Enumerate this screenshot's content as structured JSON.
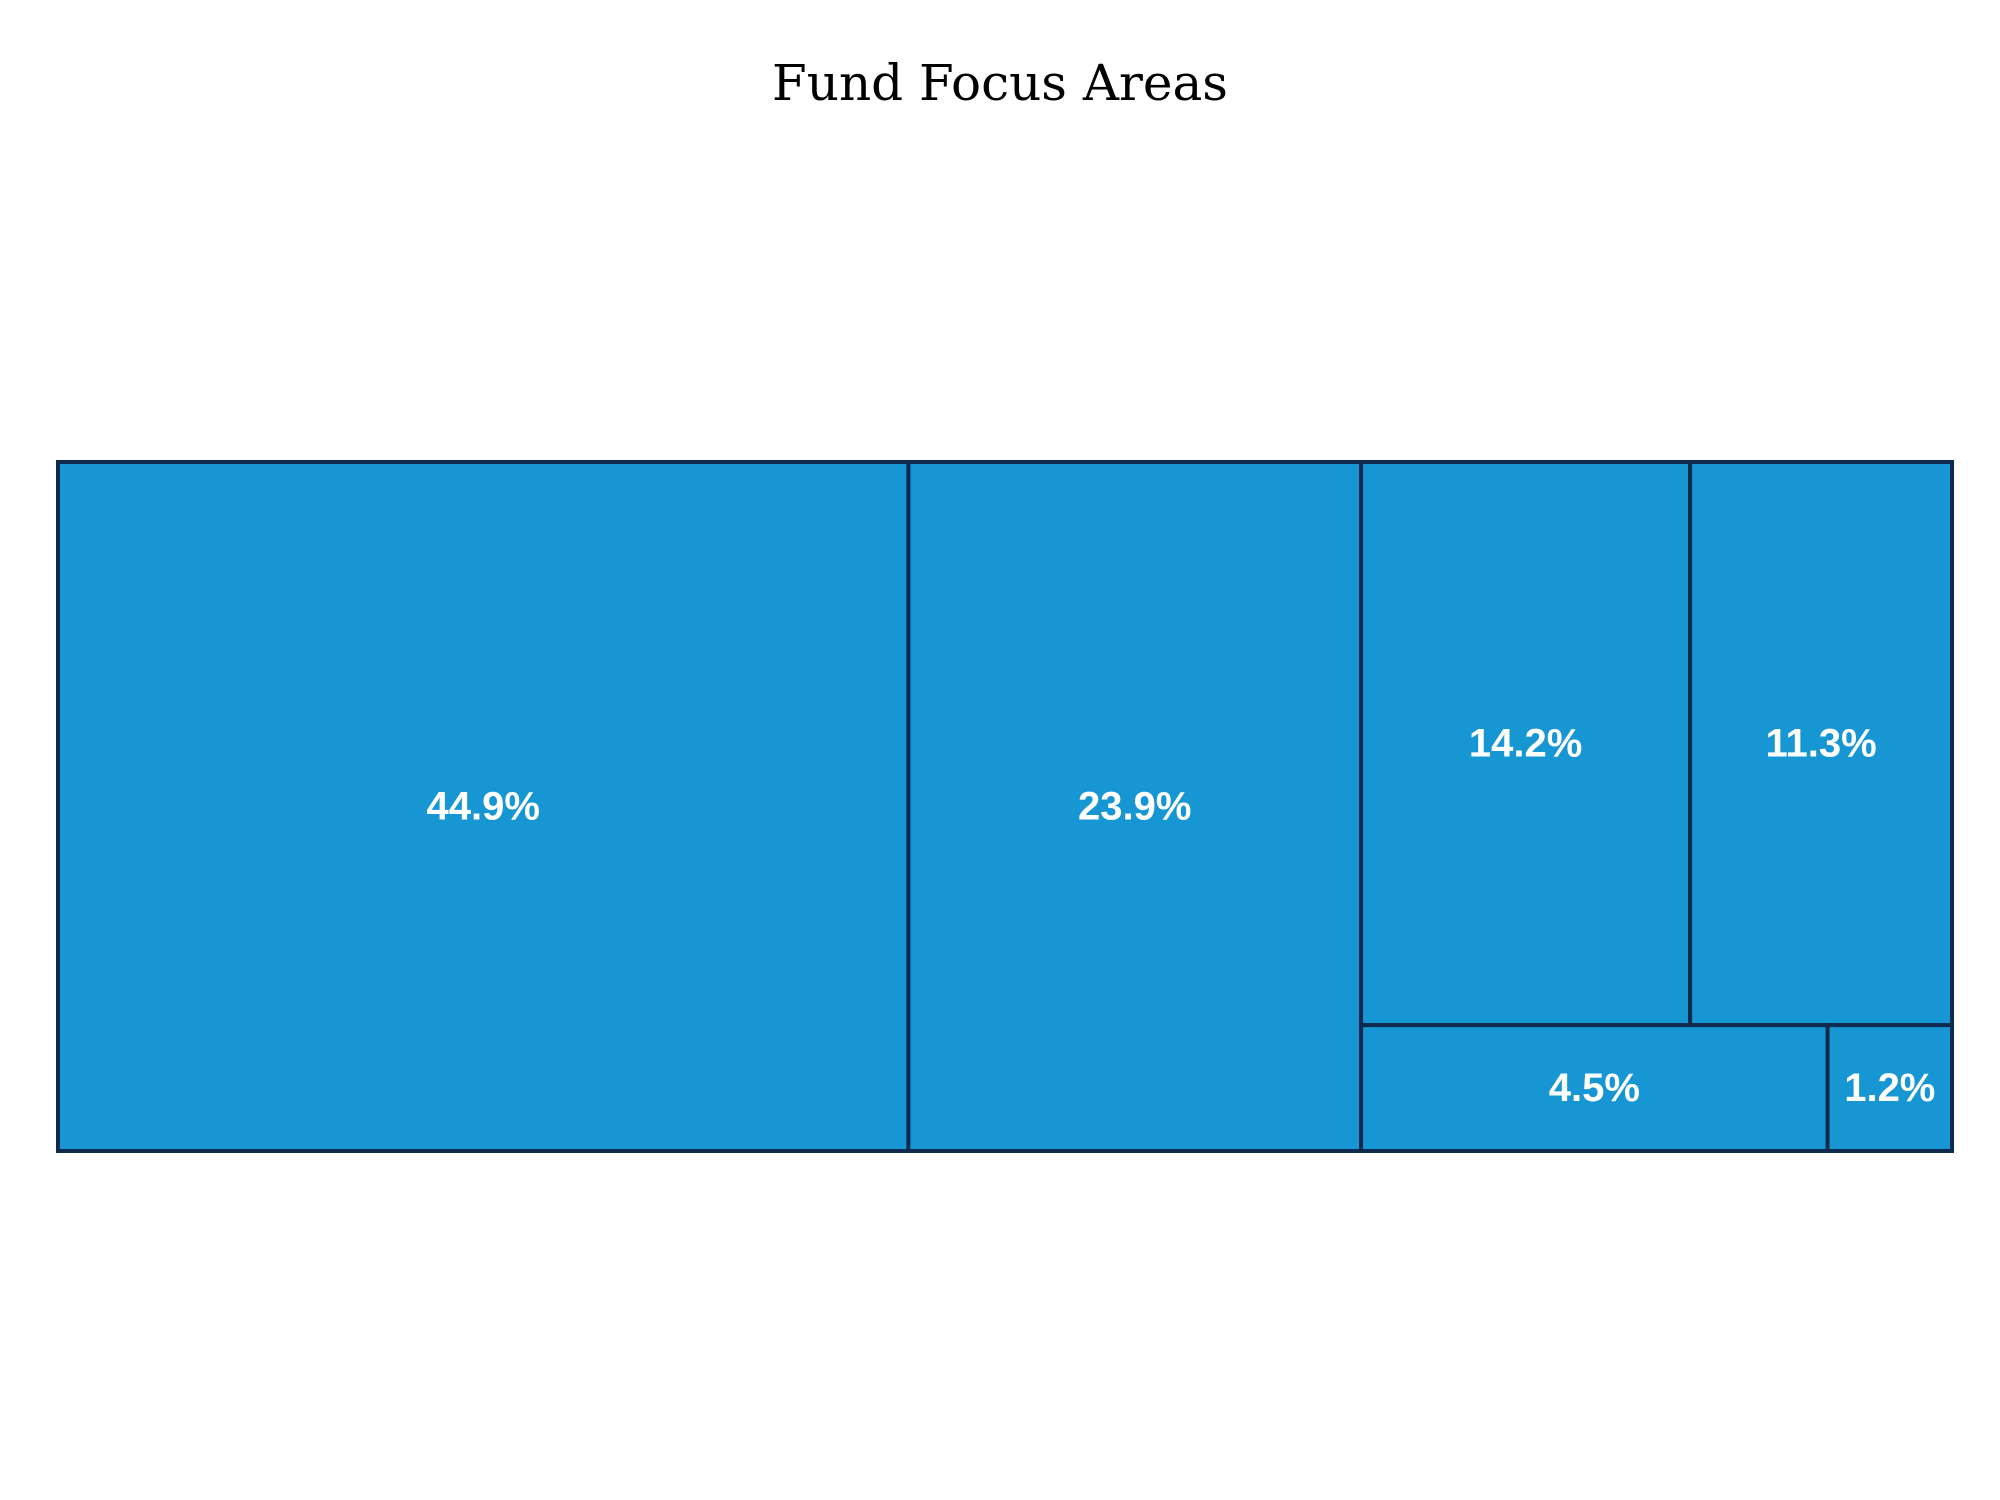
{
  "chart_data": {
    "type": "treemap",
    "title": "Fund Focus Areas",
    "values": [
      44.9,
      23.9,
      14.2,
      11.3,
      4.5,
      1.2
    ],
    "labels": [
      "44.9%",
      "23.9%",
      "14.2%",
      "11.3%",
      "4.5%",
      "1.2%"
    ]
  },
  "colors": {
    "fill": "#1796d4",
    "border": "#0f2a4f",
    "label": "#ffffff"
  }
}
